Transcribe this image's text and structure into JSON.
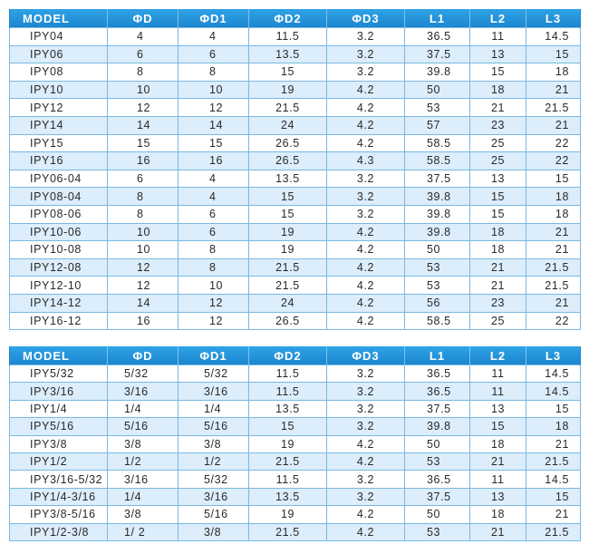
{
  "headers": [
    "MODEL",
    "ΦD",
    "ΦD1",
    "ΦD2",
    "ΦD3",
    "L1",
    "L2",
    "L3"
  ],
  "metric_rows": [
    [
      "IPY04",
      "4",
      "4",
      "11.5",
      "3.2",
      "36.5",
      "11",
      "14.5"
    ],
    [
      "IPY06",
      "6",
      "6",
      "13.5",
      "3.2",
      "37.5",
      "13",
      "15"
    ],
    [
      "IPY08",
      "8",
      "8",
      "15",
      "3.2",
      "39.8",
      "15",
      "18"
    ],
    [
      "IPY10",
      "10",
      "10",
      "19",
      "4.2",
      "50",
      "18",
      "21"
    ],
    [
      "IPY12",
      "12",
      "12",
      "21.5",
      "4.2",
      "53",
      "21",
      "21.5"
    ],
    [
      "IPY14",
      "14",
      "14",
      "24",
      "4.2",
      "57",
      "23",
      "21"
    ],
    [
      "IPY15",
      "15",
      "15",
      "26.5",
      "4.2",
      "58.5",
      "25",
      "22"
    ],
    [
      "IPY16",
      "16",
      "16",
      "26.5",
      "4.3",
      "58.5",
      "25",
      "22"
    ],
    [
      "IPY06-04",
      "6",
      "4",
      "13.5",
      "3.2",
      "37.5",
      "13",
      "15"
    ],
    [
      "IPY08-04",
      "8",
      "4",
      "15",
      "3.2",
      "39.8",
      "15",
      "18"
    ],
    [
      "IPY08-06",
      "8",
      "6",
      "15",
      "3.2",
      "39.8",
      "15",
      "18"
    ],
    [
      "IPY10-06",
      "10",
      "6",
      "19",
      "4.2",
      "39.8",
      "18",
      "21"
    ],
    [
      "IPY10-08",
      "10",
      "8",
      "19",
      "4.2",
      "50",
      "18",
      "21"
    ],
    [
      "IPY12-08",
      "12",
      "8",
      "21.5",
      "4.2",
      "53",
      "21",
      "21.5"
    ],
    [
      "IPY12-10",
      "12",
      "10",
      "21.5",
      "4.2",
      "53",
      "21",
      "21.5"
    ],
    [
      "IPY14-12",
      "14",
      "12",
      "24",
      "4.2",
      "56",
      "23",
      "21"
    ],
    [
      "IPY16-12",
      "16",
      "12",
      "26.5",
      "4.2",
      "58.5",
      "25",
      "22"
    ]
  ],
  "inch_rows": [
    [
      "IPY5/32",
      "5/32",
      "5/32",
      "11.5",
      "3.2",
      "36.5",
      "11",
      "14.5"
    ],
    [
      "IPY3/16",
      "3/16",
      "3/16",
      "11.5",
      "3.2",
      "36.5",
      "11",
      "14.5"
    ],
    [
      "IPY1/4",
      "1/4",
      "1/4",
      "13.5",
      "3.2",
      "37.5",
      "13",
      "15"
    ],
    [
      "IPY5/16",
      "5/16",
      "5/16",
      "15",
      "3.2",
      "39.8",
      "15",
      "18"
    ],
    [
      "IPY3/8",
      "3/8",
      "3/8",
      "19",
      "4.2",
      "50",
      "18",
      "21"
    ],
    [
      "IPY1/2",
      "1/2",
      "1/2",
      "21.5",
      "4.2",
      "53",
      "21",
      "21.5"
    ],
    [
      "IPY3/16-5/32",
      "3/16",
      "5/32",
      "11.5",
      "3.2",
      "36.5",
      "11",
      "14.5"
    ],
    [
      "IPY1/4-3/16",
      "1/4",
      "3/16",
      "13.5",
      "3.2",
      "37.5",
      "13",
      "15"
    ],
    [
      "IPY3/8-5/16",
      "3/8",
      "5/16",
      "19",
      "4.2",
      "50",
      "18",
      "21"
    ],
    [
      "IPY1/2-3/8",
      "1/ 2",
      "3/8",
      "21.5",
      "4.2",
      "53",
      "21",
      "21.5"
    ]
  ]
}
